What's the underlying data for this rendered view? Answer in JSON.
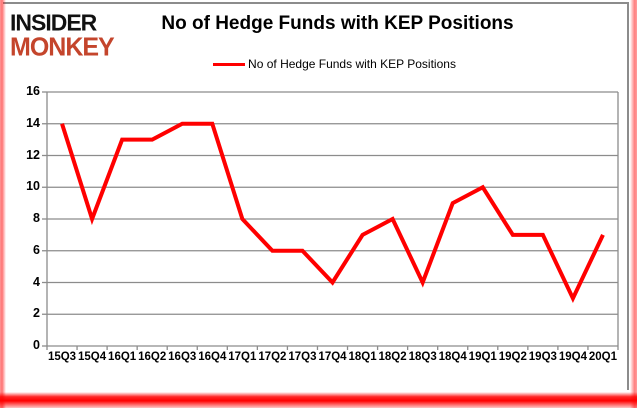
{
  "logo": {
    "line1": "INSIDER",
    "line2": "MONKEY"
  },
  "title": "No of Hedge Funds with KEP Positions",
  "legend": {
    "label": "No of Hedge Funds with KEP Positions",
    "line_color": "#ff0000"
  },
  "colors": {
    "series_line": "#ff0000",
    "grid": "#8c8c8c",
    "logo_black": "#111111",
    "logo_red": "#c4452c",
    "frame_red": "#ff0000",
    "background": "#ffffff",
    "text": "#000000"
  },
  "chart_data": {
    "type": "line",
    "title": "No of Hedge Funds with KEP Positions",
    "categories": [
      "15Q3",
      "15Q4",
      "16Q1",
      "16Q2",
      "16Q3",
      "16Q4",
      "17Q1",
      "17Q2",
      "17Q3",
      "17Q4",
      "18Q1",
      "18Q2",
      "18Q3",
      "18Q4",
      "19Q1",
      "19Q2",
      "19Q3",
      "19Q4",
      "20Q1"
    ],
    "series": [
      {
        "name": "No of Hedge Funds with KEP Positions",
        "color": "#ff0000",
        "values": [
          14,
          8,
          13,
          13,
          14,
          14,
          8,
          6,
          6,
          4,
          7,
          8,
          4,
          9,
          10,
          7,
          7,
          3,
          7
        ]
      }
    ],
    "xlabel": "",
    "ylabel": "",
    "ylim": [
      0,
      16
    ],
    "yticks": [
      0,
      2,
      4,
      6,
      8,
      10,
      12,
      14,
      16
    ],
    "grid": "horizontal",
    "legend_position": "top-center"
  }
}
